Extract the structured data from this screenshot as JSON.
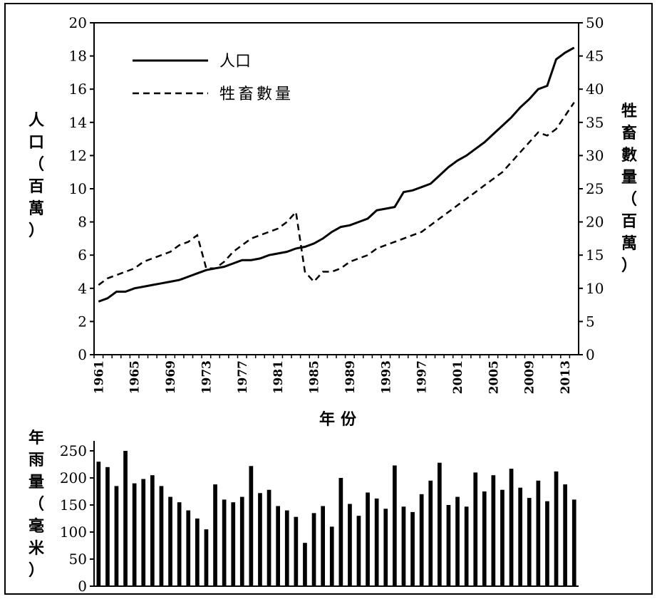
{
  "chart_data": [
    {
      "type": "line",
      "xlabel": "年份",
      "ylabel_left": "人口（百萬）",
      "ylabel_right": "牲畜數量（百萬）",
      "ylim_left": [
        0,
        20
      ],
      "ylim_right": [
        0,
        50
      ],
      "left_ticks": [
        "0",
        "2",
        "4",
        "6",
        "8",
        "10",
        "12",
        "14",
        "16",
        "18",
        "20"
      ],
      "right_ticks": [
        "0",
        "5",
        "10",
        "15",
        "20",
        "25",
        "30",
        "35",
        "40",
        "45",
        "50"
      ],
      "x_ticks": [
        "1961",
        "1965",
        "1969",
        "1973",
        "1977",
        "1981",
        "1985",
        "1989",
        "1993",
        "1997",
        "2001",
        "2005",
        "2009",
        "2013"
      ],
      "grid": false,
      "legend_position": "top-left",
      "x": [
        1961,
        1962,
        1963,
        1964,
        1965,
        1966,
        1967,
        1968,
        1969,
        1970,
        1971,
        1972,
        1973,
        1974,
        1975,
        1976,
        1977,
        1978,
        1979,
        1980,
        1981,
        1982,
        1983,
        1984,
        1985,
        1986,
        1987,
        1988,
        1989,
        1990,
        1991,
        1992,
        1993,
        1994,
        1995,
        1996,
        1997,
        1998,
        1999,
        2000,
        2001,
        2002,
        2003,
        2004,
        2005,
        2006,
        2007,
        2008,
        2009,
        2010,
        2011,
        2012,
        2013,
        2014
      ],
      "series": [
        {
          "name": "人口",
          "axis": "left",
          "style": "solid",
          "values": [
            3.2,
            3.4,
            3.8,
            3.8,
            4.0,
            4.1,
            4.2,
            4.3,
            4.4,
            4.5,
            4.7,
            4.9,
            5.1,
            5.2,
            5.3,
            5.5,
            5.7,
            5.7,
            5.8,
            6.0,
            6.1,
            6.2,
            6.4,
            6.5,
            6.7,
            7.0,
            7.4,
            7.7,
            7.8,
            8.0,
            8.2,
            8.7,
            8.8,
            8.9,
            9.8,
            9.9,
            10.1,
            10.3,
            10.8,
            11.3,
            11.7,
            12.0,
            12.4,
            12.8,
            13.3,
            13.8,
            14.3,
            14.9,
            15.4,
            16.0,
            16.2,
            17.8,
            18.2,
            18.5
          ]
        },
        {
          "name": "牲畜數量",
          "axis": "right",
          "style": "dashed",
          "values": [
            10.5,
            11.5,
            12.0,
            12.5,
            13.0,
            14.0,
            14.5,
            15.0,
            15.5,
            16.5,
            17.0,
            18.0,
            13.0,
            13.0,
            14.0,
            15.5,
            16.5,
            17.5,
            18.0,
            18.5,
            19.0,
            20.0,
            21.5,
            12.5,
            11.0,
            12.5,
            12.5,
            13.0,
            14.0,
            14.5,
            15.0,
            16.0,
            16.5,
            17.0,
            17.5,
            18.0,
            18.5,
            19.5,
            20.5,
            21.5,
            22.5,
            23.5,
            24.5,
            25.5,
            26.5,
            27.5,
            29.0,
            30.5,
            32.0,
            33.5,
            33.0,
            34.0,
            36.0,
            38.0
          ]
        }
      ]
    },
    {
      "type": "bar",
      "ylabel": "年雨量（毫米）",
      "ylim": [
        0,
        250
      ],
      "y_ticks": [
        "0",
        "50",
        "100",
        "150",
        "200",
        "250"
      ],
      "grid": false,
      "x": [
        1961,
        1962,
        1963,
        1964,
        1965,
        1966,
        1967,
        1968,
        1969,
        1970,
        1971,
        1972,
        1973,
        1974,
        1975,
        1976,
        1977,
        1978,
        1979,
        1980,
        1981,
        1982,
        1983,
        1984,
        1985,
        1986,
        1987,
        1988,
        1989,
        1990,
        1991,
        1992,
        1993,
        1994,
        1995,
        1996,
        1997,
        1998,
        1999,
        2000,
        2001,
        2002,
        2003,
        2004,
        2005,
        2006,
        2007,
        2008,
        2009,
        2010,
        2011,
        2012,
        2013,
        2014
      ],
      "values": [
        230,
        220,
        185,
        250,
        190,
        198,
        205,
        185,
        165,
        155,
        140,
        125,
        105,
        188,
        160,
        155,
        165,
        222,
        172,
        178,
        148,
        140,
        128,
        80,
        135,
        148,
        110,
        200,
        152,
        130,
        173,
        162,
        143,
        223,
        147,
        137,
        170,
        195,
        228,
        150,
        165,
        147,
        210,
        175,
        205,
        178,
        217,
        182,
        163,
        195,
        157,
        212,
        188,
        160
      ]
    }
  ]
}
